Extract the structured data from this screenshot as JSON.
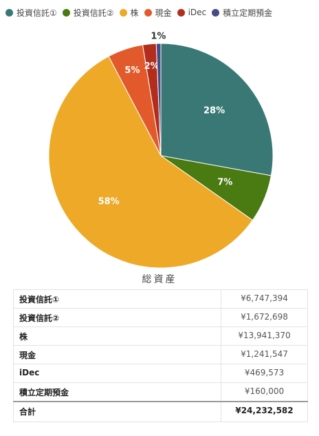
{
  "chart_data": {
    "type": "pie",
    "title": "総資産",
    "categories": [
      "投資信託①",
      "投資信託②",
      "株",
      "現金",
      "iDec",
      "積立定期預金"
    ],
    "values": [
      6747394,
      1672698,
      13941370,
      1241547,
      469573,
      160000
    ],
    "percent_labels": [
      "28%",
      "7%",
      "58%",
      "5%",
      "2%",
      "1%"
    ],
    "colors": [
      "#3a7875",
      "#4a7a12",
      "#eda927",
      "#e25a2b",
      "#b32d1d",
      "#4a4a85"
    ],
    "legend_position": "top"
  },
  "table": {
    "rows": [
      {
        "label": "投資信託①",
        "value": "¥6,747,394"
      },
      {
        "label": "投資信託②",
        "value": "¥1,672,698"
      },
      {
        "label": "株",
        "value": "¥13,941,370"
      },
      {
        "label": "現金",
        "value": "¥1,241,547"
      },
      {
        "label": "iDec",
        "value": "¥469,573"
      },
      {
        "label": "積立定期預金",
        "value": "¥160,000"
      }
    ],
    "total": {
      "label": "合計",
      "value": "¥24,232,582"
    }
  }
}
